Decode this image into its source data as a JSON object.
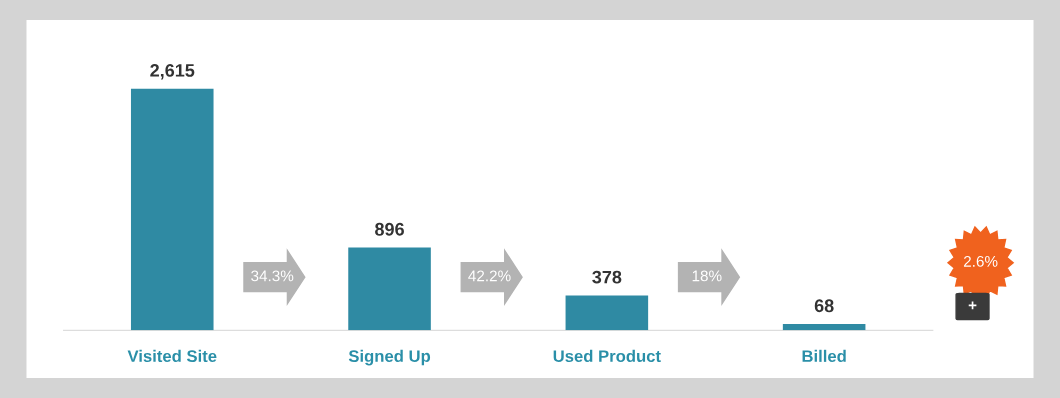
{
  "chart_data": {
    "type": "bar",
    "categories": [
      "Visited Site",
      "Signed Up",
      "Used Product",
      "Billed"
    ],
    "values": [
      2615,
      896,
      378,
      68
    ],
    "color": "#2f8aa3",
    "value_labels": [
      "2,615",
      "896",
      "378",
      "68"
    ],
    "annotations": [
      "34.3%",
      "42.2%",
      "18%",
      "2.6%",
      "+"
    ],
    "grid": false
  }
}
